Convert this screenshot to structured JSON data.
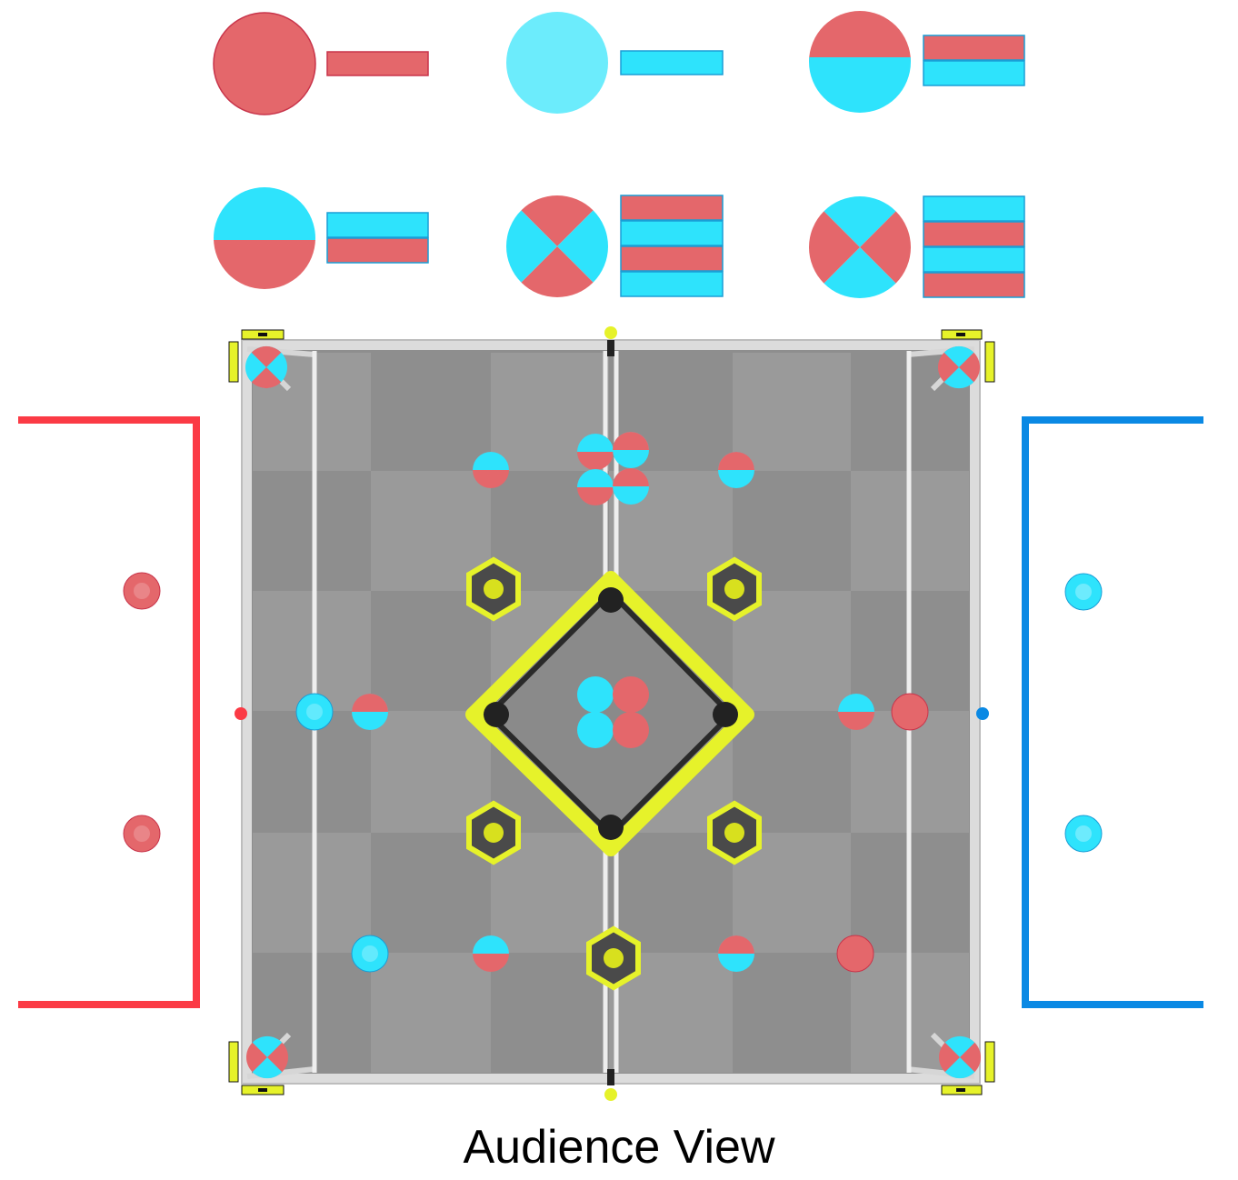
{
  "caption": "Audience View",
  "colors": {
    "red": "#e4676b",
    "cyan": "#2ee3fc",
    "light_cyan": "#6cecfc",
    "red_zone": "#fb3a45",
    "blue_zone": "#0a89e4",
    "field_yellow": "#e6f22a",
    "field_floor": "#8e8e8e"
  },
  "legend": [
    {
      "name": "solid-red-legend",
      "disc": "red",
      "stripes": [
        "red"
      ]
    },
    {
      "name": "solid-blue-legend",
      "disc": "light_cyan",
      "stripes": [
        "cyan"
      ]
    },
    {
      "name": "red-over-blue-legend",
      "disc": "half-red-top",
      "stripes": [
        "red",
        "cyan"
      ]
    },
    {
      "name": "blue-over-red-legend",
      "disc": "half-blue-top",
      "stripes": [
        "cyan",
        "red"
      ]
    },
    {
      "name": "quad-red-top-legend",
      "disc": "quad-red-top",
      "stripes": [
        "red",
        "cyan",
        "red",
        "cyan"
      ]
    },
    {
      "name": "quad-blue-top-legend",
      "disc": "quad-blue-top",
      "stripes": [
        "cyan",
        "red",
        "cyan",
        "red"
      ]
    }
  ],
  "field_items": {
    "zones": [
      "red-alliance-zone",
      "blue-alliance-zone"
    ],
    "goals": [
      "top-left-goal",
      "top-right-goal",
      "center-left-goal",
      "center-right-goal",
      "bottom-left-goal",
      "bottom-right-goal",
      "bottom-center-goal"
    ]
  }
}
